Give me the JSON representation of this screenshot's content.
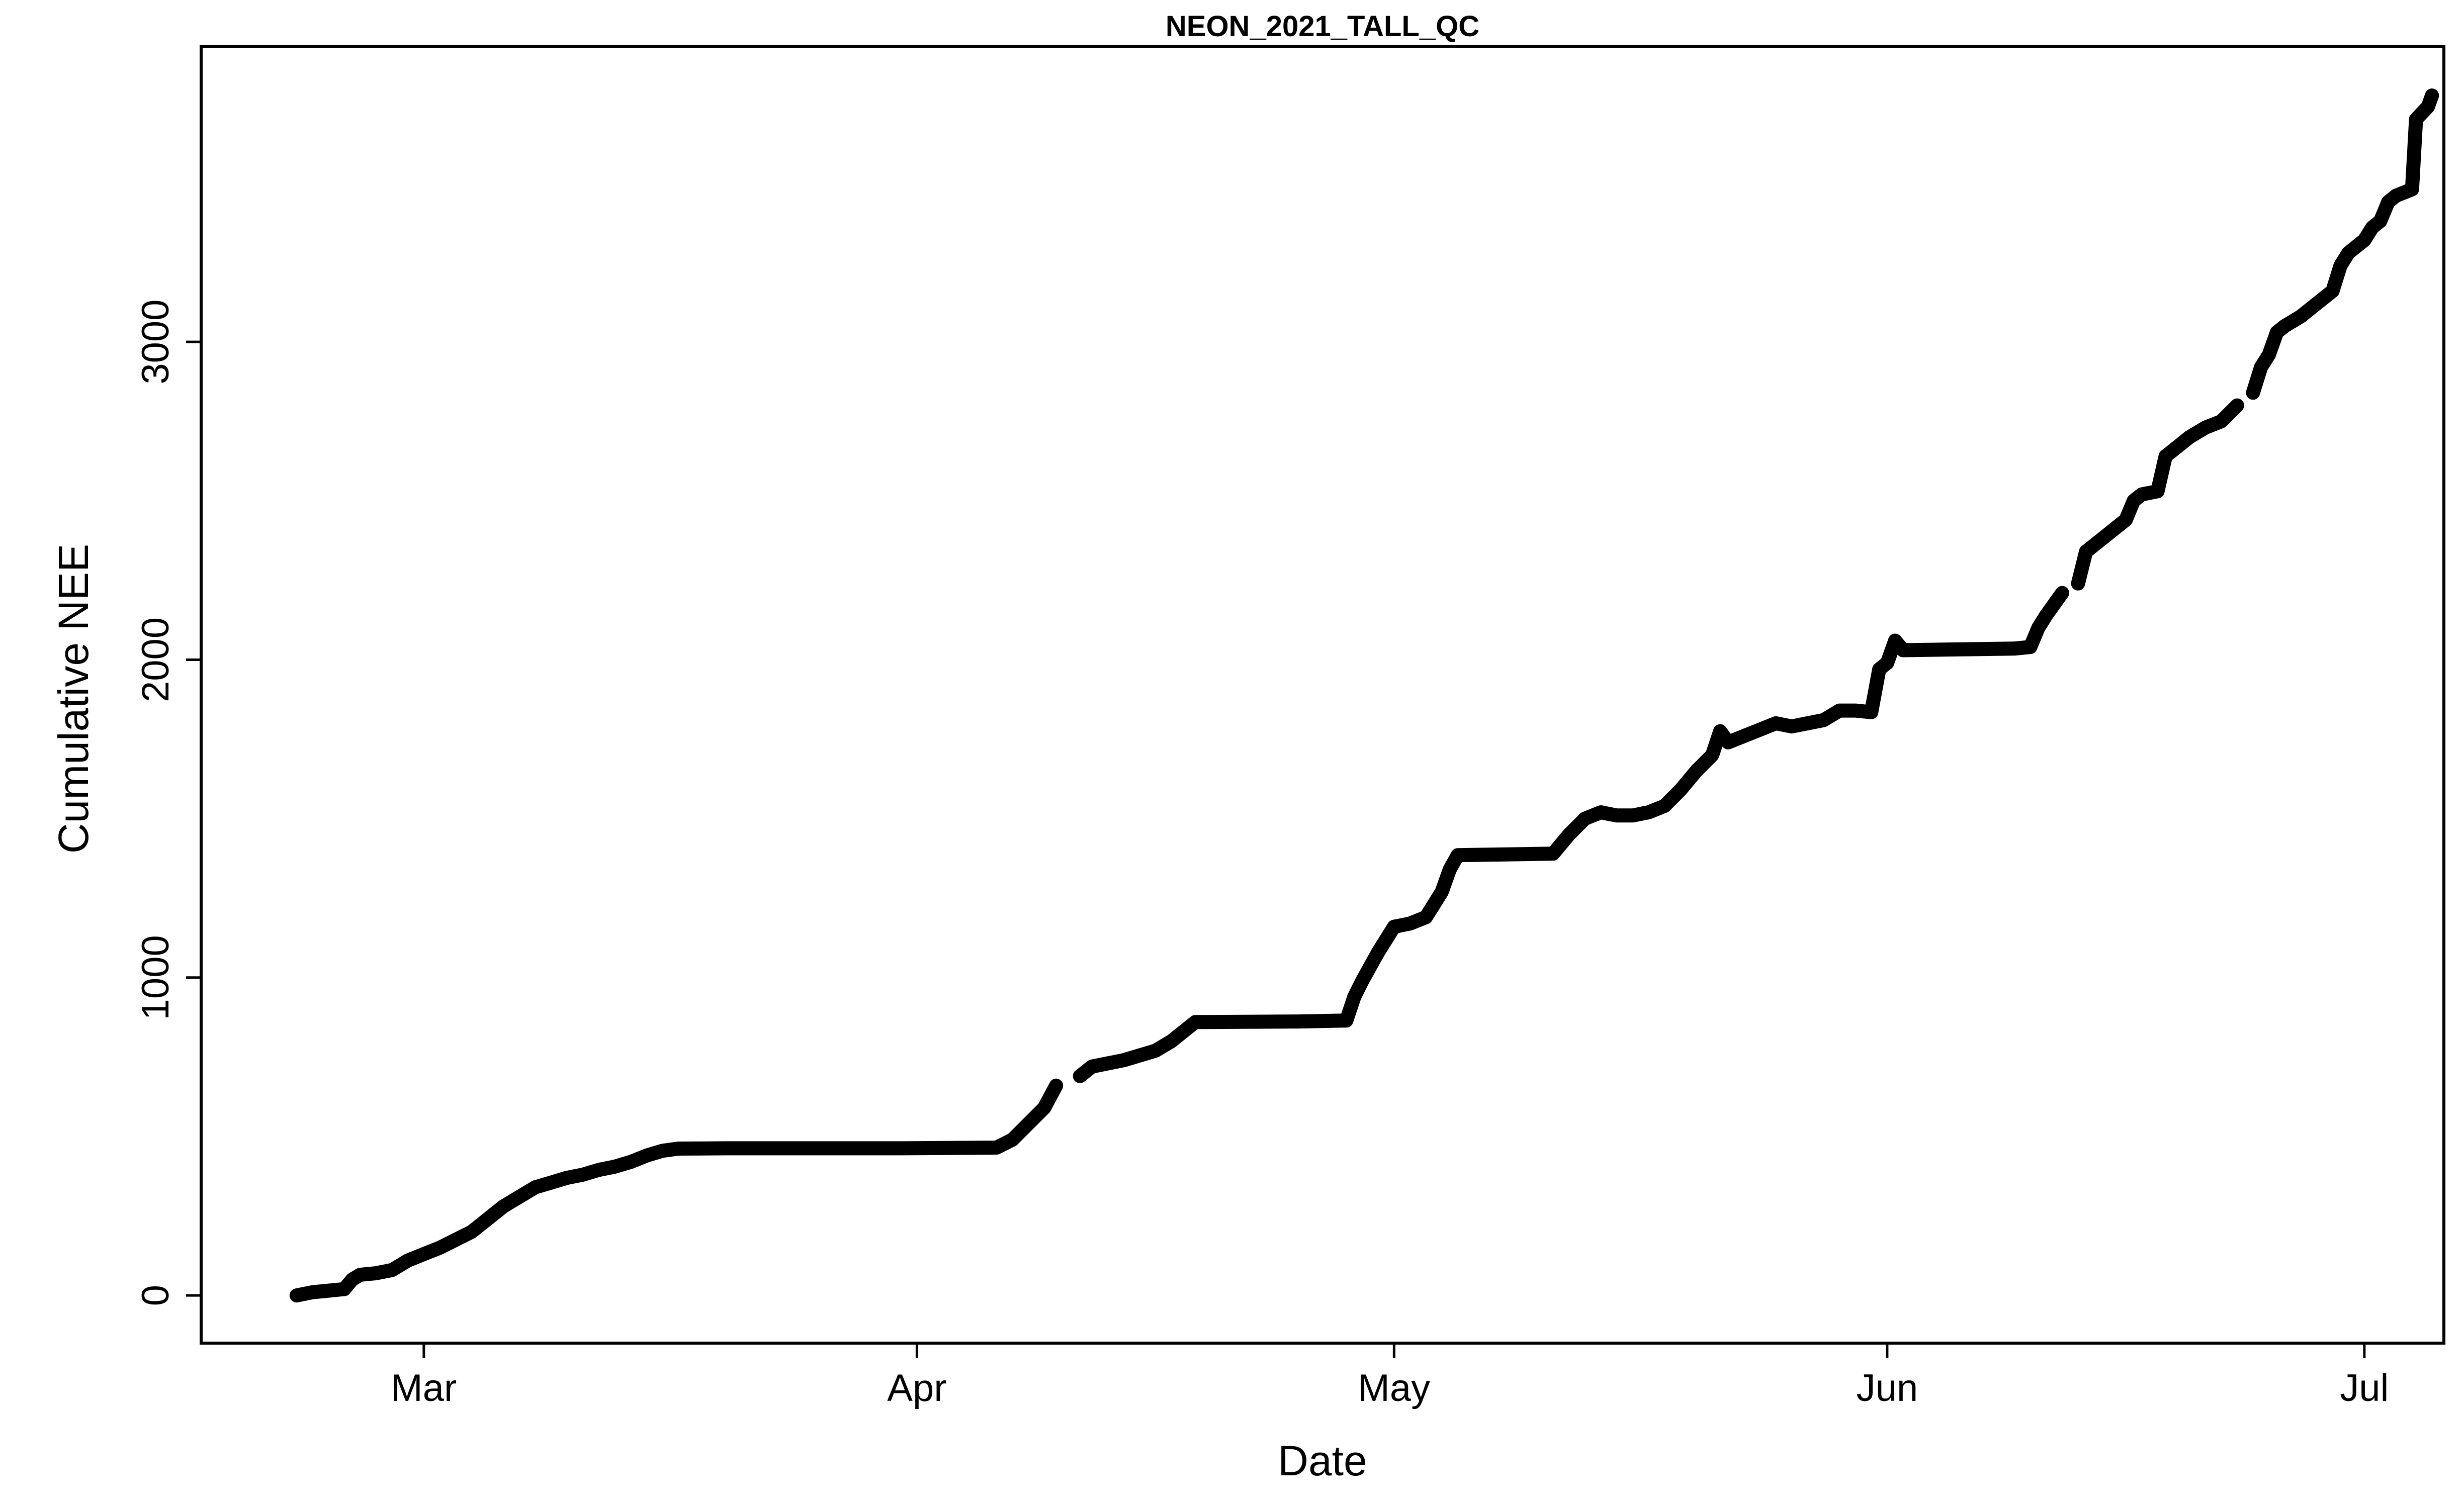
{
  "chart_data": {
    "type": "line",
    "title": "NEON_2021_TALL_QC",
    "xlabel": "Date",
    "ylabel": "Cumulative NEE",
    "x_ticks": [
      {
        "label": "Mar",
        "date": "2021-03-01"
      },
      {
        "label": "Apr",
        "date": "2021-04-01"
      },
      {
        "label": "May",
        "date": "2021-05-01"
      },
      {
        "label": "Jun",
        "date": "2021-06-01"
      },
      {
        "label": "Jul",
        "date": "2021-07-01"
      }
    ],
    "y_ticks": [
      {
        "label": "0",
        "value": 0
      },
      {
        "label": "1000",
        "value": 1000
      },
      {
        "label": "2000",
        "value": 2000
      },
      {
        "label": "3000",
        "value": 3000
      }
    ],
    "xlim": [
      "2021-02-15",
      "2021-07-06"
    ],
    "ylim": [
      -150,
      3930
    ],
    "grid": false,
    "line_color": "#000000",
    "series": [
      {
        "segments": [
          [
            [
              "2021-02-21",
              0
            ],
            [
              "2021-02-22",
              10
            ],
            [
              "2021-02-23",
              15
            ],
            [
              "2021-02-24",
              20
            ],
            [
              "2021-02-24T12:00",
              50
            ],
            [
              "2021-02-25",
              65
            ],
            [
              "2021-02-26",
              70
            ],
            [
              "2021-02-27",
              80
            ],
            [
              "2021-02-28",
              110
            ],
            [
              "2021-03-01",
              130
            ],
            [
              "2021-03-02",
              150
            ],
            [
              "2021-03-03",
              175
            ],
            [
              "2021-03-04",
              200
            ],
            [
              "2021-03-05",
              240
            ],
            [
              "2021-03-06",
              280
            ],
            [
              "2021-03-07",
              310
            ],
            [
              "2021-03-08",
              340
            ],
            [
              "2021-03-09",
              355
            ],
            [
              "2021-03-10",
              370
            ],
            [
              "2021-03-11",
              380
            ],
            [
              "2021-03-12",
              395
            ],
            [
              "2021-03-13",
              405
            ],
            [
              "2021-03-14",
              420
            ],
            [
              "2021-03-15",
              440
            ],
            [
              "2021-03-16",
              455
            ],
            [
              "2021-03-17",
              462
            ],
            [
              "2021-03-20",
              463
            ],
            [
              "2021-03-31",
              463
            ],
            [
              "2021-04-06",
              465
            ],
            [
              "2021-04-07",
              490
            ],
            [
              "2021-04-08",
              540
            ],
            [
              "2021-04-09",
              590
            ],
            [
              "2021-04-09T18:00",
              660
            ]
          ],
          [
            [
              "2021-04-11T06:00",
              690
            ],
            [
              "2021-04-12",
              720
            ],
            [
              "2021-04-13",
              730
            ],
            [
              "2021-04-14",
              740
            ],
            [
              "2021-04-15",
              755
            ],
            [
              "2021-04-16",
              770
            ],
            [
              "2021-04-17",
              800
            ],
            [
              "2021-04-18",
              840
            ],
            [
              "2021-04-18T12:00",
              860
            ],
            [
              "2021-04-25",
              862
            ],
            [
              "2021-04-28",
              865
            ],
            [
              "2021-04-28T12:00",
              940
            ],
            [
              "2021-04-29",
              990
            ],
            [
              "2021-04-30",
              1080
            ],
            [
              "2021-04-30T12:00",
              1120
            ],
            [
              "2021-05-01",
              1160
            ],
            [
              "2021-05-02",
              1170
            ],
            [
              "2021-05-03",
              1190
            ],
            [
              "2021-05-03T12:00",
              1230
            ],
            [
              "2021-05-04",
              1270
            ],
            [
              "2021-05-04T12:00",
              1340
            ],
            [
              "2021-05-05",
              1385
            ],
            [
              "2021-05-11",
              1390
            ],
            [
              "2021-05-12",
              1450
            ],
            [
              "2021-05-13",
              1500
            ],
            [
              "2021-05-14",
              1520
            ],
            [
              "2021-05-15",
              1510
            ],
            [
              "2021-05-16",
              1510
            ],
            [
              "2021-05-17",
              1520
            ],
            [
              "2021-05-18",
              1540
            ],
            [
              "2021-05-19",
              1590
            ],
            [
              "2021-05-20",
              1650
            ],
            [
              "2021-05-21",
              1700
            ],
            [
              "2021-05-21T12:00",
              1775
            ],
            [
              "2021-05-22",
              1740
            ],
            [
              "2021-05-23",
              1760
            ],
            [
              "2021-05-24",
              1780
            ],
            [
              "2021-05-25",
              1800
            ],
            [
              "2021-05-26",
              1790
            ],
            [
              "2021-05-27",
              1800
            ],
            [
              "2021-05-28",
              1810
            ],
            [
              "2021-05-29",
              1840
            ],
            [
              "2021-05-30",
              1840
            ],
            [
              "2021-05-31",
              1835
            ],
            [
              "2021-05-31T12:00",
              1970
            ],
            [
              "2021-06-01",
              1990
            ],
            [
              "2021-06-01T12:00",
              2060
            ],
            [
              "2021-06-02",
              2030
            ],
            [
              "2021-06-09",
              2035
            ],
            [
              "2021-06-10",
              2040
            ],
            [
              "2021-06-10T12:00",
              2100
            ],
            [
              "2021-06-11",
              2140
            ],
            [
              "2021-06-12",
              2210
            ]
          ],
          [
            [
              "2021-06-13",
              2240
            ],
            [
              "2021-06-13T12:00",
              2340
            ],
            [
              "2021-06-14",
              2360
            ],
            [
              "2021-06-15",
              2400
            ],
            [
              "2021-06-16",
              2440
            ],
            [
              "2021-06-16T12:00",
              2500
            ],
            [
              "2021-06-17",
              2520
            ],
            [
              "2021-06-18",
              2530
            ],
            [
              "2021-06-18T12:00",
              2640
            ],
            [
              "2021-06-19",
              2660
            ],
            [
              "2021-06-20",
              2700
            ],
            [
              "2021-06-21",
              2730
            ],
            [
              "2021-06-22",
              2750
            ],
            [
              "2021-06-23",
              2800
            ]
          ],
          [
            [
              "2021-06-24",
              2840
            ],
            [
              "2021-06-24T12:00",
              2920
            ],
            [
              "2021-06-25",
              2960
            ],
            [
              "2021-06-25T12:00",
              3030
            ],
            [
              "2021-06-26",
              3050
            ],
            [
              "2021-06-27",
              3080
            ],
            [
              "2021-06-28",
              3120
            ],
            [
              "2021-06-29",
              3160
            ],
            [
              "2021-06-29T12:00",
              3240
            ],
            [
              "2021-06-30",
              3280
            ],
            [
              "2021-07-01",
              3320
            ],
            [
              "2021-07-01T12:00",
              3360
            ],
            [
              "2021-07-02",
              3380
            ],
            [
              "2021-07-02T12:00",
              3440
            ],
            [
              "2021-07-03",
              3460
            ],
            [
              "2021-07-04",
              3480
            ],
            [
              "2021-07-04T06:00",
              3700
            ],
            [
              "2021-07-05",
              3740
            ],
            [
              "2021-07-05T06:00",
              3775
            ]
          ]
        ]
      }
    ]
  }
}
